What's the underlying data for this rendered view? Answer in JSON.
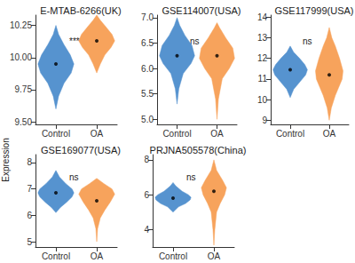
{
  "ylabel": "Expression",
  "chart_data": [
    {
      "type": "violin",
      "title": "E-MTAB-6266(UK)",
      "categories": [
        "Control",
        "OA"
      ],
      "colors": [
        "#5693cf",
        "#f7a35c"
      ],
      "ylim": [
        9.48,
        10.33
      ],
      "yticks": [
        {
          "value": 9.5,
          "label": "9.50"
        },
        {
          "value": 9.75,
          "label": "9.75"
        },
        {
          "value": 10,
          "label": "10.00"
        },
        {
          "value": 10.25,
          "label": "10.25"
        }
      ],
      "grid": false,
      "annotation": "***",
      "violins": [
        {
          "y": [
            9.6,
            9.7,
            9.8,
            9.88,
            9.95,
            10.02,
            10.1,
            10.18,
            10.25
          ],
          "density": [
            0,
            0.15,
            0.45,
            0.85,
            1.0,
            0.8,
            0.45,
            0.15,
            0
          ],
          "mean": 9.95
        },
        {
          "y": [
            9.88,
            9.95,
            10.02,
            10.08,
            10.13,
            10.18,
            10.24,
            10.29,
            10.33
          ],
          "density": [
            0,
            0.2,
            0.45,
            0.8,
            1.0,
            0.85,
            0.5,
            0.2,
            0
          ],
          "mean": 10.13
        }
      ]
    },
    {
      "type": "violin",
      "title": "GSE114007(USA)",
      "categories": [
        "Control",
        "OA"
      ],
      "colors": [
        "#5693cf",
        "#f7a35c"
      ],
      "ylim": [
        4.9,
        7.05
      ],
      "yticks": [
        {
          "value": 5,
          "label": "5.0"
        },
        {
          "value": 5.5,
          "label": "5.5"
        },
        {
          "value": 6,
          "label": "6.0"
        },
        {
          "value": 6.5,
          "label": "6.5"
        },
        {
          "value": 7,
          "label": "7.0"
        }
      ],
      "grid": false,
      "annotation": "ns",
      "violins": [
        {
          "y": [
            5.3,
            5.6,
            5.9,
            6.1,
            6.25,
            6.45,
            6.65,
            6.85,
            7.0
          ],
          "density": [
            0,
            0.1,
            0.35,
            0.8,
            1.0,
            0.85,
            0.45,
            0.15,
            0
          ],
          "mean": 6.25
        },
        {
          "y": [
            5.0,
            5.4,
            5.8,
            6.0,
            6.2,
            6.4,
            6.6,
            6.8,
            6.9
          ],
          "density": [
            0,
            0.08,
            0.3,
            0.7,
            1.0,
            0.9,
            0.5,
            0.15,
            0
          ],
          "mean": 6.25
        }
      ]
    },
    {
      "type": "violin",
      "title": "GSE117999(USA)",
      "categories": [
        "Control",
        "OA"
      ],
      "colors": [
        "#5693cf",
        "#f7a35c"
      ],
      "ylim": [
        8.8,
        14.1
      ],
      "yticks": [
        9,
        10,
        11,
        12,
        13,
        14
      ],
      "grid": false,
      "annotation": "ns",
      "violins": [
        {
          "y": [
            10.1,
            10.5,
            10.9,
            11.2,
            11.45,
            11.7,
            12.0,
            12.3,
            12.6
          ],
          "density": [
            0,
            0.2,
            0.6,
            0.9,
            1.0,
            0.85,
            0.55,
            0.2,
            0
          ],
          "mean": 11.45
        },
        {
          "y": [
            9.0,
            9.6,
            10.2,
            10.6,
            11.0,
            11.4,
            12.0,
            12.6,
            13.0,
            13.5
          ],
          "density": [
            0,
            0.12,
            0.35,
            0.55,
            0.75,
            0.8,
            0.6,
            0.35,
            0.15,
            0
          ],
          "mean": 11.2
        }
      ]
    },
    {
      "type": "violin",
      "title": "GSE169077(USA)",
      "categories": [
        "Control",
        "OA"
      ],
      "colors": [
        "#5693cf",
        "#f7a35c"
      ],
      "ylim": [
        4.8,
        8.3
      ],
      "yticks": [
        5,
        6,
        7,
        8
      ],
      "grid": false,
      "annotation": "ns",
      "violins": [
        {
          "y": [
            6.1,
            6.3,
            6.5,
            6.7,
            6.85,
            7.0,
            7.2,
            7.45,
            7.7
          ],
          "density": [
            0,
            0.25,
            0.6,
            0.9,
            1.0,
            0.9,
            0.55,
            0.2,
            0
          ],
          "mean": 6.85
        },
        {
          "y": [
            5.0,
            5.5,
            5.9,
            6.2,
            6.5,
            6.8,
            7.0,
            7.2,
            7.4
          ],
          "density": [
            0,
            0.05,
            0.2,
            0.45,
            0.75,
            1.0,
            0.85,
            0.4,
            0
          ],
          "mean": 6.55
        }
      ]
    },
    {
      "type": "violin",
      "title": "PRJNA505578(China)",
      "categories": [
        "Control",
        "OA"
      ],
      "colors": [
        "#5693cf",
        "#f7a35c"
      ],
      "ylim": [
        3.0,
        8.3
      ],
      "yticks": [
        4,
        6,
        8
      ],
      "grid": false,
      "annotation": "ns",
      "violins": [
        {
          "y": [
            5.0,
            5.3,
            5.5,
            5.7,
            5.85,
            6.0,
            6.2,
            6.5,
            6.7
          ],
          "density": [
            0,
            0.3,
            0.7,
            0.95,
            1.0,
            0.85,
            0.5,
            0.15,
            0
          ],
          "mean": 5.8
        },
        {
          "y": [
            3.1,
            4.0,
            5.0,
            5.5,
            6.0,
            6.4,
            6.8,
            7.4,
            8.0
          ],
          "density": [
            0,
            0.05,
            0.15,
            0.35,
            0.6,
            0.7,
            0.5,
            0.15,
            0
          ],
          "mean": 6.2
        }
      ]
    }
  ]
}
